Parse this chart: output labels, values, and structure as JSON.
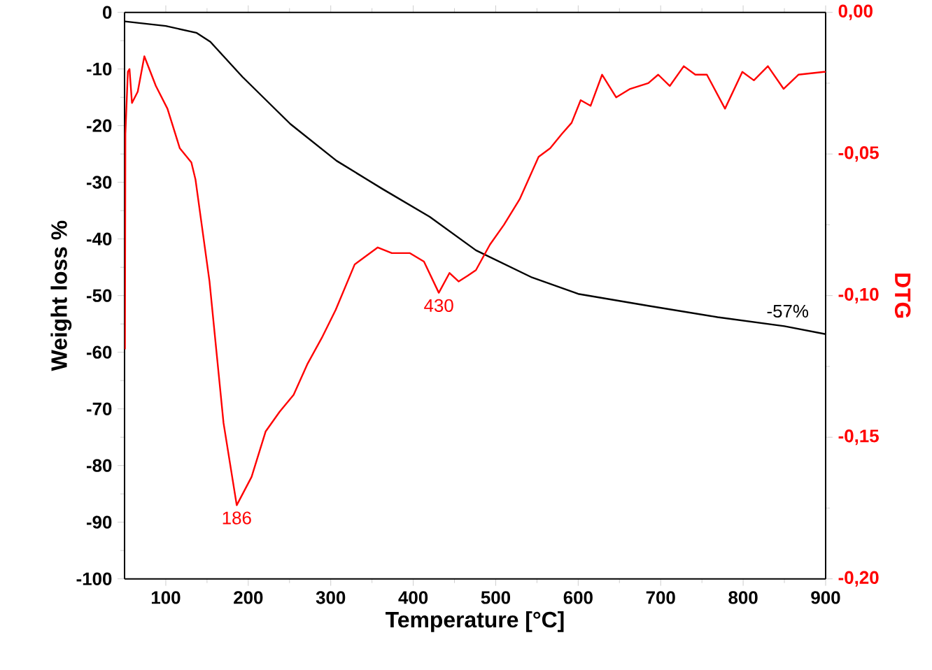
{
  "chart_data": {
    "type": "line",
    "xlabel": "Temperature [°C]",
    "ylabel": "Weight loss %",
    "y2label": "DTG",
    "xlim": [
      50,
      900
    ],
    "xticks": [
      100,
      200,
      300,
      400,
      500,
      600,
      700,
      800,
      900
    ],
    "ylim": [
      -100,
      0
    ],
    "yticks": [
      -100,
      -90,
      -80,
      -70,
      -60,
      -50,
      -40,
      -30,
      -20,
      -10,
      0
    ],
    "y2lim": [
      -0.2,
      0
    ],
    "y2ticks": [
      {
        "value": -0.2,
        "label": "-0,20"
      },
      {
        "value": -0.15,
        "label": "-0,15"
      },
      {
        "value": -0.1,
        "label": "-0,10"
      },
      {
        "value": -0.05,
        "label": "-0,05"
      },
      {
        "value": 0,
        "label": "0,00"
      }
    ],
    "grid": false,
    "series": [
      {
        "color": "#ff0000",
        "axis": "y2",
        "x": [
          50.5,
          51,
          54,
          56,
          59,
          66,
          74,
          88,
          102,
          117,
          131,
          136,
          153,
          170,
          186,
          204,
          221,
          238,
          255,
          272,
          289,
          306,
          329,
          357,
          374,
          396,
          413,
          431,
          444,
          455,
          466,
          476,
          493,
          510,
          529,
          552,
          566,
          580,
          592,
          603,
          615,
          629,
          646,
          663,
          685,
          697,
          711,
          728,
          742,
          756,
          778,
          799,
          813,
          830,
          849,
          867,
          898,
          900
        ],
        "values": [
          -0.119,
          -0.043,
          -0.021,
          -0.02,
          -0.032,
          -0.028,
          -0.0155,
          -0.026,
          -0.034,
          -0.048,
          -0.053,
          -0.059,
          -0.095,
          -0.145,
          -0.174,
          -0.164,
          -0.148,
          -0.141,
          -0.135,
          -0.124,
          -0.115,
          -0.105,
          -0.089,
          -0.083,
          -0.085,
          -0.085,
          -0.088,
          -0.099,
          -0.092,
          -0.095,
          -0.093,
          -0.091,
          -0.082,
          -0.075,
          -0.066,
          -0.051,
          -0.048,
          -0.043,
          -0.039,
          -0.031,
          -0.033,
          -0.022,
          -0.03,
          -0.027,
          -0.025,
          -0.022,
          -0.026,
          -0.019,
          -0.022,
          -0.022,
          -0.034,
          -0.021,
          -0.024,
          -0.019,
          -0.027,
          -0.022,
          -0.021,
          -0.021
        ]
      },
      {
        "color": "#000000",
        "x": [
          50.5,
          100,
          137,
          154,
          193,
          251,
          307,
          363,
          420,
          476,
          544,
          600,
          685,
          769,
          850,
          900
        ],
        "values": [
          -1.6,
          -2.4,
          -3.6,
          -5.2,
          -11.4,
          -19.7,
          -26.2,
          -31.2,
          -36.1,
          -42,
          -46.8,
          -49.7,
          -51.8,
          -53.8,
          -55.4,
          -56.8
        ]
      }
    ],
    "annotations": [
      {
        "text": "186",
        "x": 186,
        "y": -87.5
      },
      {
        "text": "430",
        "x": 431,
        "y": -50
      },
      "-57%"
    ]
  }
}
